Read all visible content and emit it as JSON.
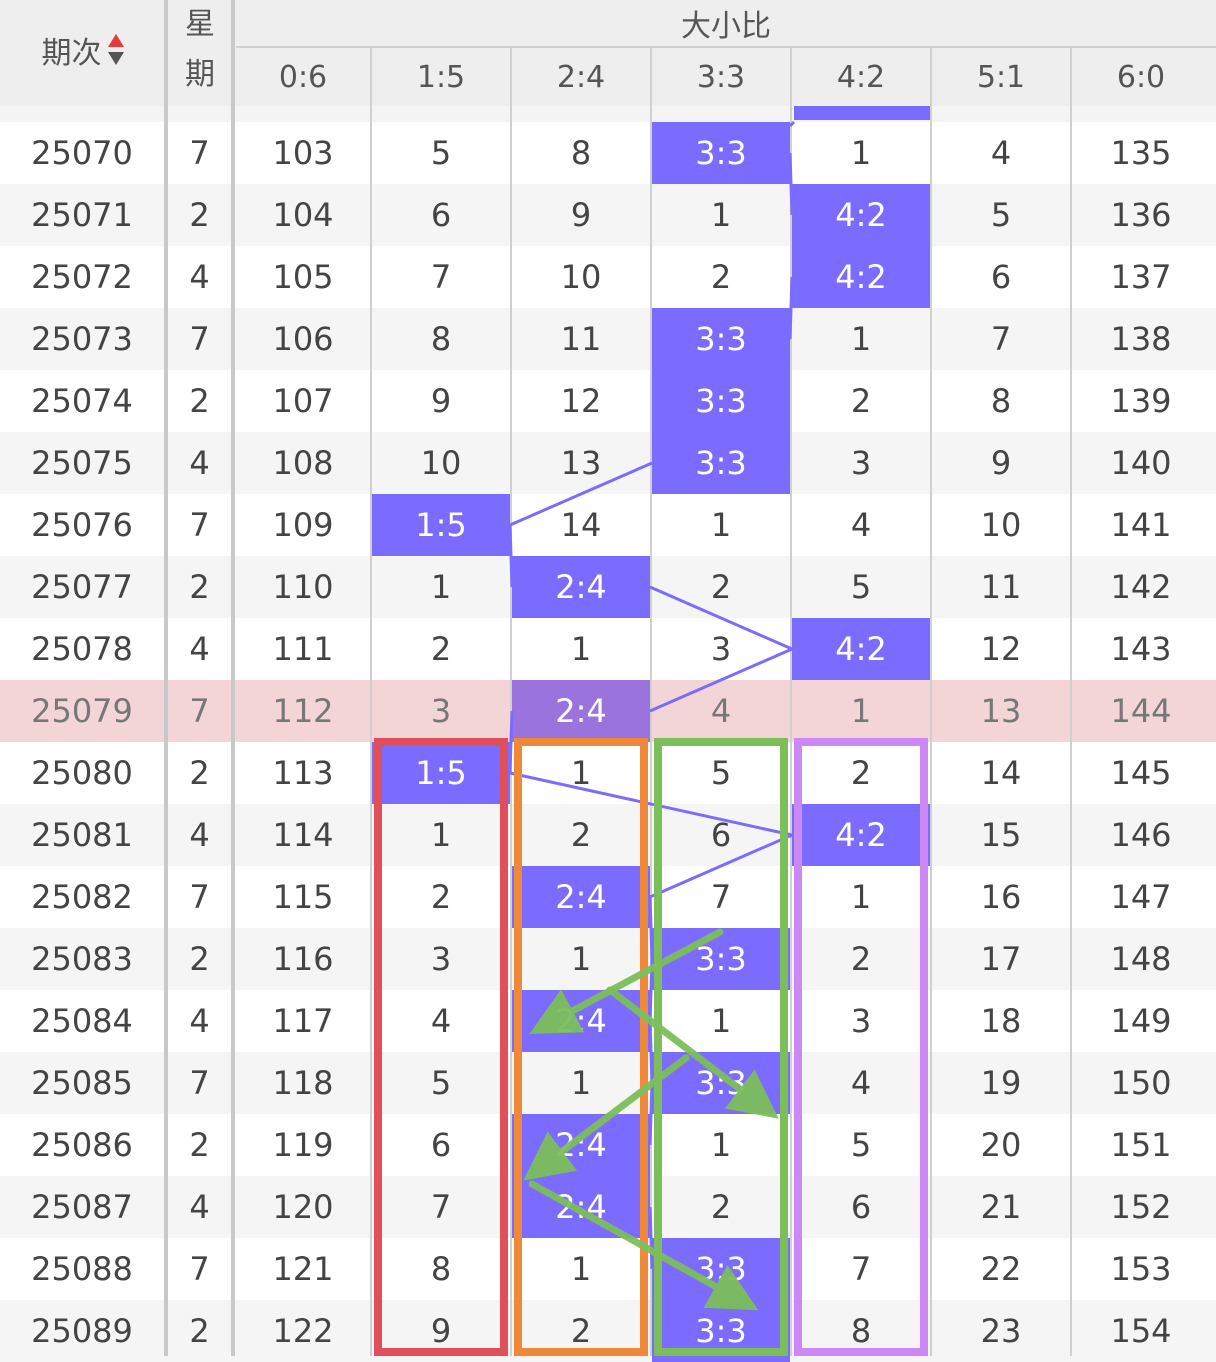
{
  "header": {
    "period_label": "期次",
    "weekday_label_1": "星",
    "weekday_label_2": "期",
    "group_title": "大小比",
    "columns": [
      "0:6",
      "1:5",
      "2:4",
      "3:3",
      "4:2",
      "5:1",
      "6:0"
    ],
    "sort_icon": "sort-up-down-icon"
  },
  "colors": {
    "hit": "#7b6cff",
    "hit_highlight_row": "#9a74dc",
    "highlight_row": "#f3d5d7",
    "trend_line": "#7b6cff",
    "box_red": "#e0505a",
    "box_orange": "#f0883a",
    "box_green": "#7cbf5a",
    "box_purple": "#cc88f4",
    "arrow_green": "#7cbf5a"
  },
  "rows": [
    {
      "period": "25070",
      "weekday": "7",
      "cells": [
        "103",
        "5",
        "8",
        "3:3",
        "1",
        "4",
        "135"
      ],
      "hit": 3
    },
    {
      "period": "25071",
      "weekday": "2",
      "cells": [
        "104",
        "6",
        "9",
        "1",
        "4:2",
        "5",
        "136"
      ],
      "hit": 4
    },
    {
      "period": "25072",
      "weekday": "4",
      "cells": [
        "105",
        "7",
        "10",
        "2",
        "4:2",
        "6",
        "137"
      ],
      "hit": 4
    },
    {
      "period": "25073",
      "weekday": "7",
      "cells": [
        "106",
        "8",
        "11",
        "3:3",
        "1",
        "7",
        "138"
      ],
      "hit": 3
    },
    {
      "period": "25074",
      "weekday": "2",
      "cells": [
        "107",
        "9",
        "12",
        "3:3",
        "2",
        "8",
        "139"
      ],
      "hit": 3
    },
    {
      "period": "25075",
      "weekday": "4",
      "cells": [
        "108",
        "10",
        "13",
        "3:3",
        "3",
        "9",
        "140"
      ],
      "hit": 3
    },
    {
      "period": "25076",
      "weekday": "7",
      "cells": [
        "109",
        "1:5",
        "14",
        "1",
        "4",
        "10",
        "141"
      ],
      "hit": 1
    },
    {
      "period": "25077",
      "weekday": "2",
      "cells": [
        "110",
        "1",
        "2:4",
        "2",
        "5",
        "11",
        "142"
      ],
      "hit": 2
    },
    {
      "period": "25078",
      "weekday": "4",
      "cells": [
        "111",
        "2",
        "1",
        "3",
        "4:2",
        "12",
        "143"
      ],
      "hit": 4
    },
    {
      "period": "25079",
      "weekday": "7",
      "cells": [
        "112",
        "3",
        "2:4",
        "4",
        "1",
        "13",
        "144"
      ],
      "hit": 2,
      "highlight": true
    },
    {
      "period": "25080",
      "weekday": "2",
      "cells": [
        "113",
        "1:5",
        "1",
        "5",
        "2",
        "14",
        "145"
      ],
      "hit": 1
    },
    {
      "period": "25081",
      "weekday": "4",
      "cells": [
        "114",
        "1",
        "2",
        "6",
        "4:2",
        "15",
        "146"
      ],
      "hit": 4
    },
    {
      "period": "25082",
      "weekday": "7",
      "cells": [
        "115",
        "2",
        "2:4",
        "7",
        "1",
        "16",
        "147"
      ],
      "hit": 2
    },
    {
      "period": "25083",
      "weekday": "2",
      "cells": [
        "116",
        "3",
        "1",
        "3:3",
        "2",
        "17",
        "148"
      ],
      "hit": 3
    },
    {
      "period": "25084",
      "weekday": "4",
      "cells": [
        "117",
        "4",
        "2:4",
        "1",
        "3",
        "18",
        "149"
      ],
      "hit": 2
    },
    {
      "period": "25085",
      "weekday": "7",
      "cells": [
        "118",
        "5",
        "1",
        "3:3",
        "4",
        "19",
        "150"
      ],
      "hit": 3
    },
    {
      "period": "25086",
      "weekday": "2",
      "cells": [
        "119",
        "6",
        "2:4",
        "1",
        "5",
        "20",
        "151"
      ],
      "hit": 2
    },
    {
      "period": "25087",
      "weekday": "4",
      "cells": [
        "120",
        "7",
        "2:4",
        "2",
        "6",
        "21",
        "152"
      ],
      "hit": 2
    },
    {
      "period": "25088",
      "weekday": "7",
      "cells": [
        "121",
        "8",
        "1",
        "3:3",
        "7",
        "22",
        "153"
      ],
      "hit": 3
    },
    {
      "period": "25089",
      "weekday": "2",
      "cells": [
        "122",
        "9",
        "2",
        "3:3",
        "8",
        "23",
        "154"
      ],
      "hit": 3
    }
  ]
}
